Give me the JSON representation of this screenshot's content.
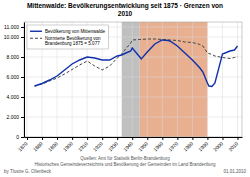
{
  "chart_data": {
    "type": "line",
    "title": "Mittenwalde: Bevölkerungsentwicklung seit 1875 · Grenzen von",
    "subtitle": "2010",
    "xlim": [
      1868,
      2013
    ],
    "ylim": [
      0,
      11500
    ],
    "xticks": [
      1870,
      1880,
      1890,
      1900,
      1910,
      1920,
      1930,
      1940,
      1950,
      1960,
      1970,
      1980,
      1990,
      2000,
      2010
    ],
    "yticks": [
      0,
      {
        "value": 2000,
        "label": "2.000"
      },
      {
        "value": 4000,
        "label": "4.000"
      },
      {
        "value": 6000,
        "label": "6.000"
      },
      {
        "value": 8000,
        "label": "8.000"
      },
      {
        "value": 10000,
        "label": "10.000"
      },
      {
        "value": 11000,
        "label": "11.000"
      }
    ],
    "grid": true,
    "legend": "upper left",
    "spans": [
      {
        "start": 1933,
        "end": 1945,
        "color": "#c0c0c0"
      },
      {
        "start": 1945,
        "end": 1990,
        "color": "#e8b090"
      }
    ],
    "series": [
      {
        "name": "Bevölkerung von Mittenwalde",
        "color": "#1030aa",
        "line_style": "solid",
        "x": [
          1875,
          1880,
          1885,
          1890,
          1895,
          1900,
          1905,
          1910,
          1915,
          1920,
          1925,
          1930,
          1933,
          1935,
          1939,
          1940,
          1945,
          1946,
          1950,
          1955,
          1960,
          1964,
          1965,
          1970,
          1975,
          1980,
          1985,
          1987,
          1990,
          1991,
          1993,
          1995,
          2000,
          2005,
          2008,
          2010
        ],
        "values": [
          5100,
          5350,
          5700,
          6100,
          6700,
          7300,
          7700,
          8000,
          7900,
          7700,
          7700,
          8100,
          8200,
          8350,
          8600,
          8900,
          8000,
          7800,
          8500,
          9300,
          9700,
          9650,
          9600,
          9100,
          8400,
          7700,
          6900,
          6500,
          5400,
          5100,
          5050,
          5400,
          8300,
          8600,
          8700,
          9100
        ]
      },
      {
        "name": "Normierte Bevölkerung von\nBrandenburg 1875 = 5.077",
        "color": "#444444",
        "line_style": "dashed",
        "x": [
          1875,
          1880,
          1885,
          1890,
          1895,
          1900,
          1905,
          1910,
          1915,
          1920,
          1925,
          1930,
          1933,
          1935,
          1939,
          1940,
          1945,
          1950,
          1955,
          1960,
          1965,
          1970,
          1975,
          1980,
          1985,
          1987,
          1990,
          1993,
          1995,
          2000,
          2005,
          2008,
          2010
        ],
        "values": [
          5077,
          5300,
          5600,
          5900,
          6300,
          6750,
          7200,
          7600,
          7100,
          6700,
          7100,
          7900,
          8300,
          8700,
          9400,
          9700,
          9750,
          9800,
          9800,
          9750,
          9700,
          9650,
          9500,
          9450,
          9250,
          9100,
          8400,
          8250,
          8100,
          7950,
          7850,
          7950,
          8050
        ]
      }
    ],
    "annotations": [
      "Quellen: Amt für Statistik Berlin-Brandenburg",
      "Historisches Gemeindeverzeichnis und Bevölkerung der Gemeinden im Land Brandenburg",
      "by Tlustre G. Ollenbeck",
      "01.01.2010"
    ]
  }
}
